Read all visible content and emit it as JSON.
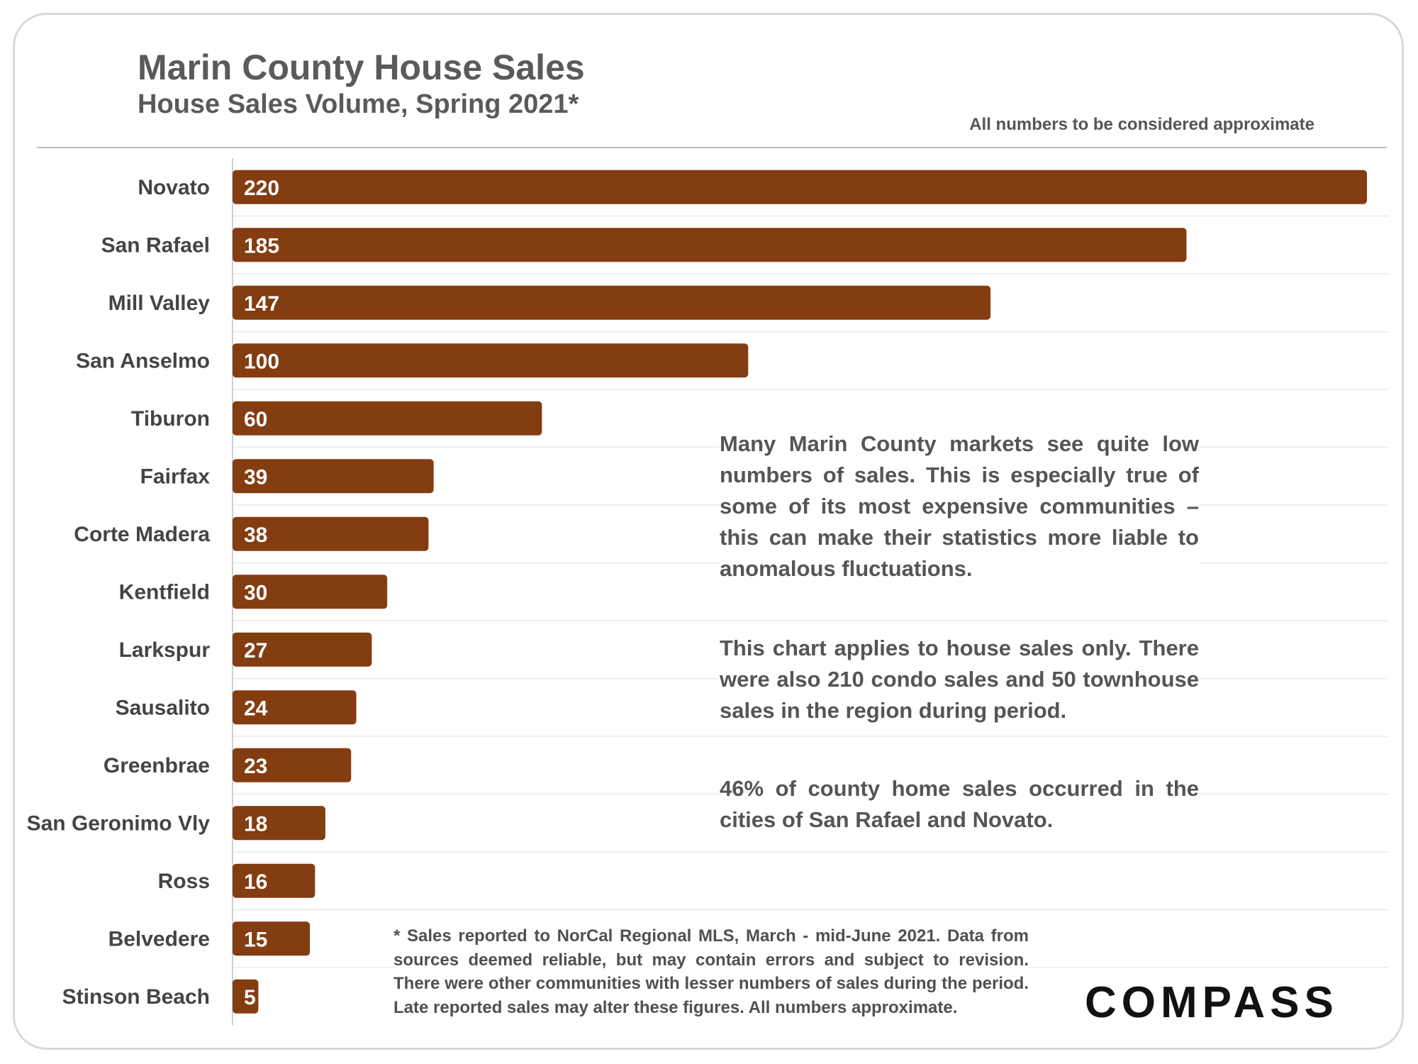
{
  "header": {
    "title": "Marin County House Sales",
    "subtitle": "House Sales Volume, Spring 2021*",
    "approx_note": "All numbers to be considered approximate"
  },
  "chart_data": {
    "type": "bar",
    "orientation": "horizontal",
    "title": "Marin County House Sales",
    "subtitle": "House Sales Volume, Spring 2021*",
    "categories": [
      "Novato",
      "San Rafael",
      "Mill Valley",
      "San Anselmo",
      "Tiburon",
      "Fairfax",
      "Corte Madera",
      "Kentfield",
      "Larkspur",
      "Sausalito",
      "Greenbrae",
      "San Geronimo Vly",
      "Ross",
      "Belvedere",
      "Stinson Beach"
    ],
    "values": [
      220,
      185,
      147,
      100,
      60,
      39,
      38,
      30,
      27,
      24,
      23,
      18,
      16,
      15,
      5
    ],
    "xlim": [
      0,
      220
    ],
    "data_labels": "inside-start",
    "grid": "horizontal separators",
    "legend": "none",
    "bar_color": "#843c11"
  },
  "annotations": {
    "note1": "Many Marin County markets see quite low numbers of sales. This is especially true of some of its most expensive communities – this can make their statistics more liable to anomalous fluctuations.",
    "note2": "This chart applies to house sales only. There were also 210 condo sales and 50 townhouse sales in the region during period.",
    "note3": "46% of county home sales occurred in the cities of San Rafael and Novato."
  },
  "footnote": "* Sales reported to NorCal Regional MLS, March - mid-June 2021. Data from sources deemed reliable, but may contain errors and subject to revision. There were other communities with lesser numbers of sales during the period. Late reported sales may alter these figures. All numbers approximate.",
  "logo": {
    "text": "COMPASS"
  },
  "colors": {
    "bar": "#843c11",
    "text": "#555555",
    "grid": "#eeeeee"
  }
}
